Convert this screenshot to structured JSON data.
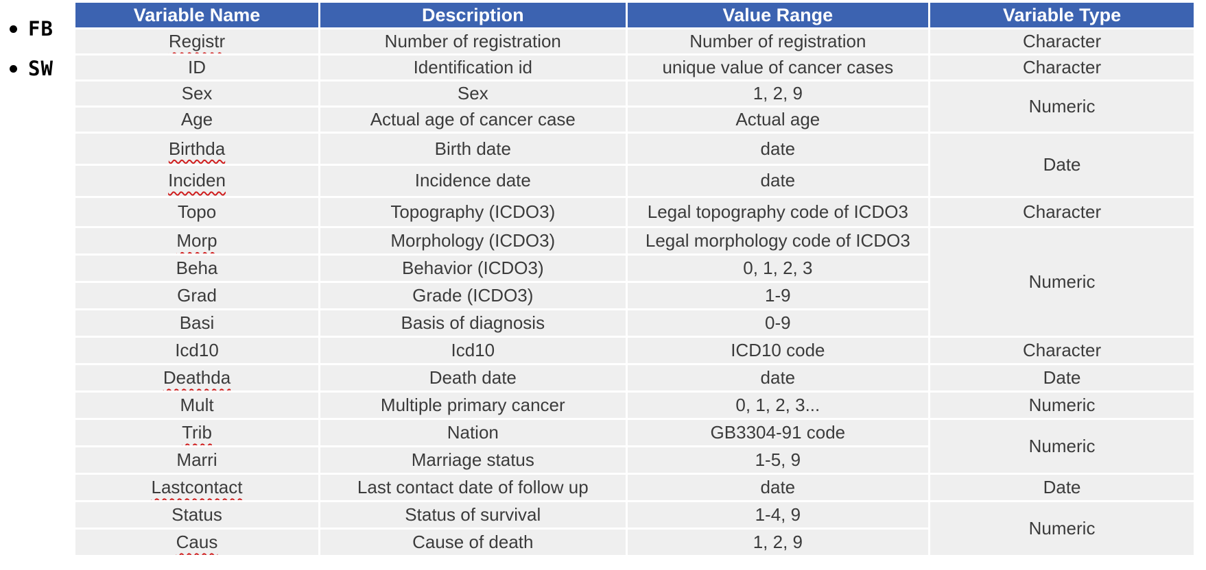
{
  "bullets": [
    {
      "label": "FB"
    },
    {
      "label": "SW"
    }
  ],
  "colors": {
    "header_bg": "#3C63B1",
    "cell_bg": "#EFEFEF",
    "header_text": "#FFFFFF",
    "body_text": "#3B3B3B",
    "squiggle": "#CF1D1D"
  },
  "table": {
    "headers": [
      "Variable Name",
      "Description",
      "Value Range",
      "Variable Type"
    ],
    "rows": [
      {
        "name": "Registr",
        "misspelled": true,
        "description": "Number of registration",
        "value_range": "Number of registration"
      },
      {
        "name": "ID",
        "misspelled": false,
        "description": "Identification id",
        "value_range": "unique value of cancer cases"
      },
      {
        "name": "Sex",
        "misspelled": false,
        "description": "Sex",
        "value_range": "1, 2, 9"
      },
      {
        "name": "Age",
        "misspelled": false,
        "description": "Actual age of cancer case",
        "value_range": "Actual age"
      },
      {
        "name": "Birthda",
        "misspelled": true,
        "description": "Birth date",
        "value_range": "date"
      },
      {
        "name": "Inciden",
        "misspelled": true,
        "description": "Incidence date",
        "value_range": "date"
      },
      {
        "name": "Topo",
        "misspelled": false,
        "description": "Topography (ICDO3)",
        "value_range": "Legal topography code of ICDO3"
      },
      {
        "name": "Morp",
        "misspelled": true,
        "description": "Morphology (ICDO3)",
        "value_range": "Legal morphology code of ICDO3"
      },
      {
        "name": "Beha",
        "misspelled": false,
        "description": "Behavior (ICDO3)",
        "value_range": "0, 1, 2, 3"
      },
      {
        "name": "Grad",
        "misspelled": false,
        "description": "Grade (ICDO3)",
        "value_range": "1-9"
      },
      {
        "name": "Basi",
        "misspelled": false,
        "description": "Basis of diagnosis",
        "value_range": "0-9"
      },
      {
        "name": "Icd10",
        "misspelled": false,
        "description": "Icd10",
        "value_range": "ICD10 code"
      },
      {
        "name": "Deathda",
        "misspelled": true,
        "description": "Death date",
        "value_range": "date"
      },
      {
        "name": "Mult",
        "misspelled": false,
        "description": "Multiple primary cancer",
        "value_range": "0, 1, 2, 3..."
      },
      {
        "name": "Trib",
        "misspelled": true,
        "description": "Nation",
        "value_range": "GB3304-91 code"
      },
      {
        "name": "Marri",
        "misspelled": false,
        "description": "Marriage status",
        "value_range": "1-5, 9"
      },
      {
        "name": "Lastcontact",
        "misspelled": true,
        "description": "Last contact date of follow up",
        "value_range": "date"
      },
      {
        "name": "Status",
        "misspelled": false,
        "description": "Status of survival",
        "value_range": "1-4, 9"
      },
      {
        "name": "Caus",
        "misspelled": true,
        "description": "Cause of death",
        "value_range": "1, 2, 9"
      }
    ],
    "type_cells": [
      {
        "label": "Character",
        "span": 1
      },
      {
        "label": "Character",
        "span": 1
      },
      {
        "label": "Numeric",
        "span": 2
      },
      {
        "label": "Date",
        "span": 2
      },
      {
        "label": "Character",
        "span": 1
      },
      {
        "label": "Numeric",
        "span": 4
      },
      {
        "label": "Character",
        "span": 1
      },
      {
        "label": "Date",
        "span": 1
      },
      {
        "label": "Numeric",
        "span": 1
      },
      {
        "label": "Numeric",
        "span": 2
      },
      {
        "label": "Date",
        "span": 1
      },
      {
        "label": "Numeric",
        "span": 2
      }
    ]
  }
}
